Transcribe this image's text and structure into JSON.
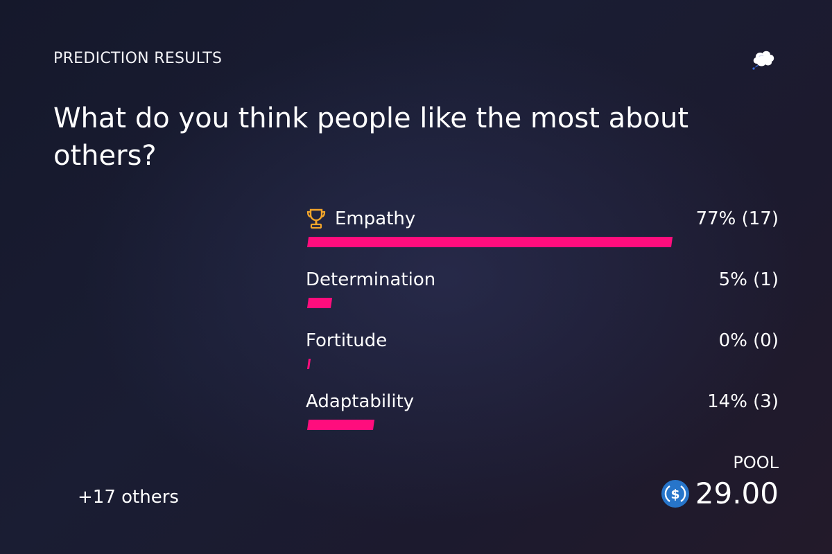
{
  "header": {
    "kicker": "PREDICTION RESULTS",
    "brand_icon": "thought-cloud-icon"
  },
  "question": "What do you think people like the most about others?",
  "options": [
    {
      "label": "Empathy",
      "result": "77% (17)",
      "percent": 77,
      "winner": true,
      "icon": "trophy-icon"
    },
    {
      "label": "Determination",
      "result": "5% (1)",
      "percent": 5,
      "winner": false
    },
    {
      "label": "Fortitude",
      "result": "0% (0)",
      "percent": 0,
      "winner": false
    },
    {
      "label": "Adaptability",
      "result": "14% (3)",
      "percent": 14,
      "winner": false
    }
  ],
  "footer": {
    "others": "+17 others",
    "pool_label": "POOL",
    "pool_amount": "29.00",
    "pool_icon": "usdc-coin-icon"
  },
  "colors": {
    "bar": "#ff0d7d",
    "trophy": "#f4a62a",
    "coin": "#2775ca"
  }
}
